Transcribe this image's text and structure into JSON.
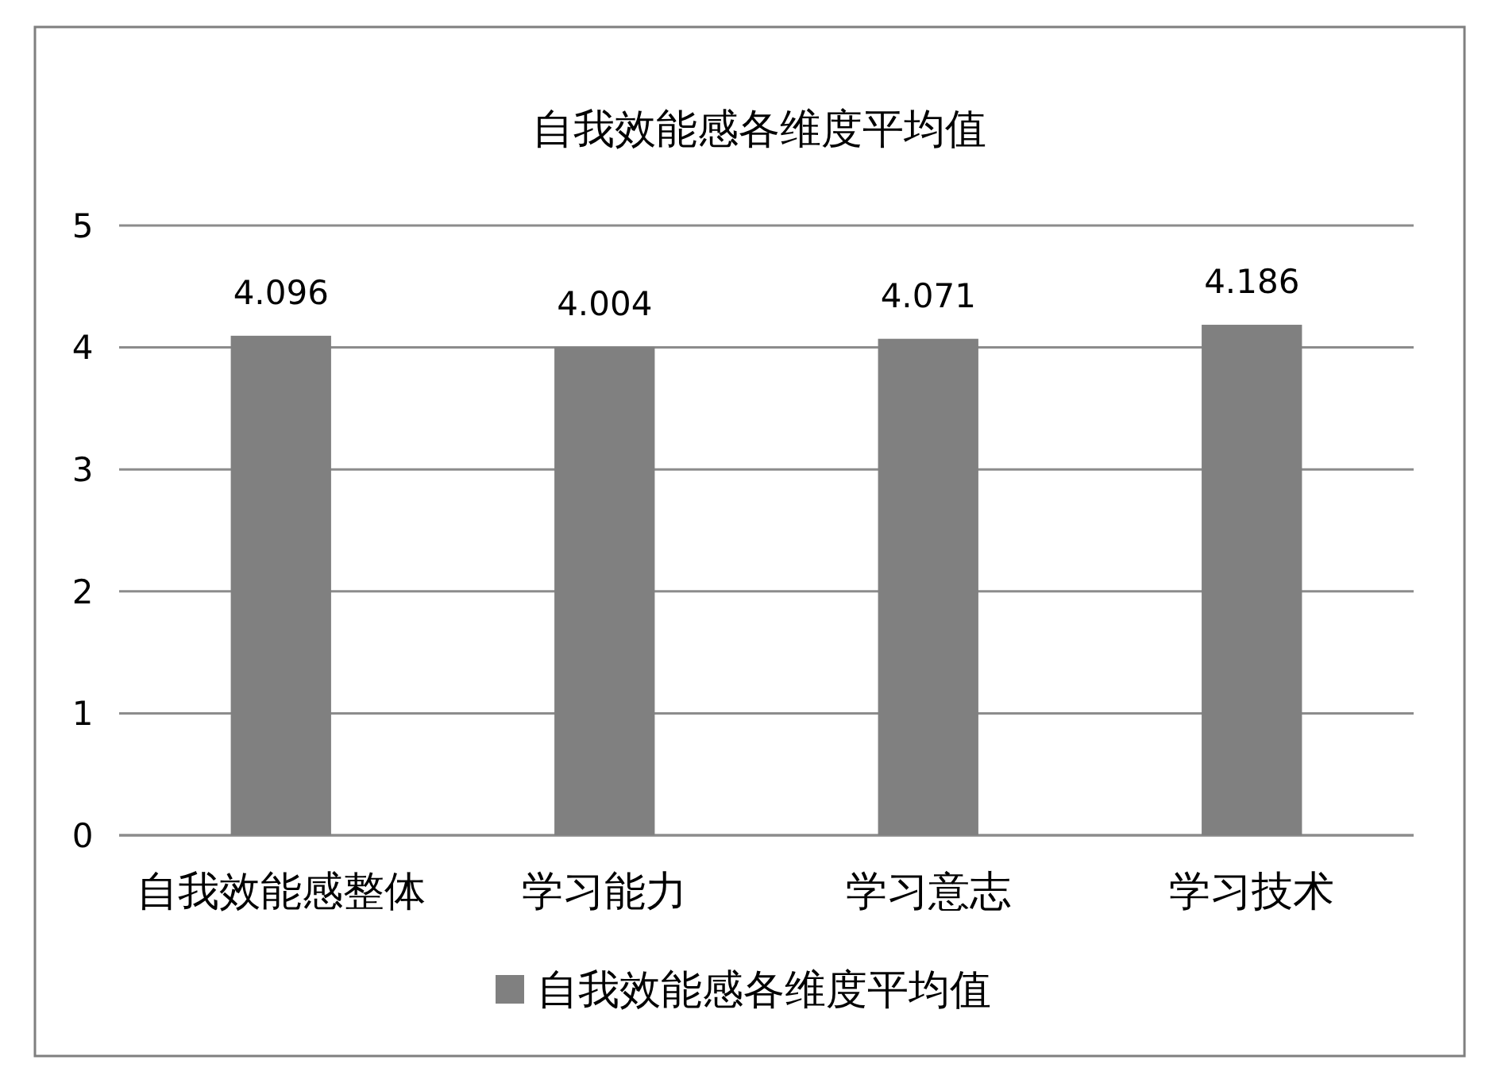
{
  "chart_data": {
    "type": "bar",
    "title": "自我效能感各维度平均值",
    "categories": [
      "自我效能感整体",
      "学习能力",
      "学习意志",
      "学习技术"
    ],
    "series": [
      {
        "name": "自我效能感各维度平均值",
        "color": "#808080",
        "values": [
          4.096,
          4.004,
          4.071,
          4.186
        ]
      }
    ],
    "ylim": [
      0,
      5
    ],
    "yticks": [
      0,
      1,
      2,
      3,
      4,
      5
    ],
    "grid": "y",
    "legend": "bottom",
    "data_labels": true
  }
}
